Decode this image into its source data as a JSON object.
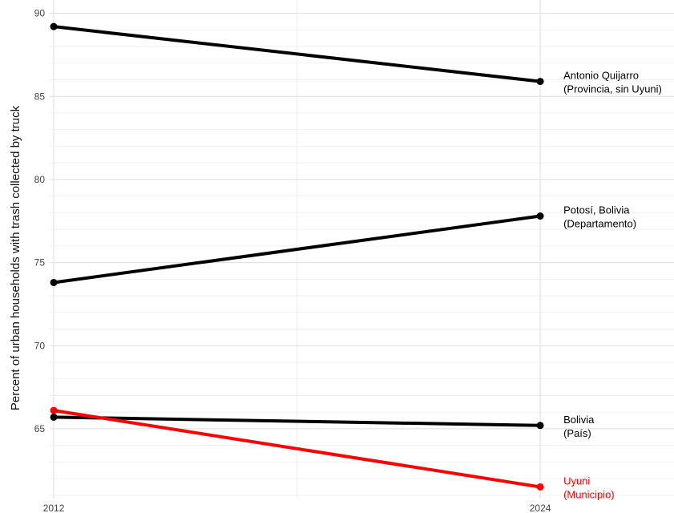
{
  "chart_data": {
    "type": "line",
    "title": "",
    "xlabel": "",
    "ylabel": "Percent of urban households with trash collected by truck",
    "x": [
      2012,
      2024
    ],
    "x_tick_labels": [
      "2012",
      "2024"
    ],
    "ylim": [
      60.8,
      90.8
    ],
    "xlim": [
      2011.9,
      2027.3
    ],
    "y_ticks": [
      65,
      70,
      75,
      80,
      85,
      90
    ],
    "grid": true,
    "legend": "none (direct labels at right end of each line)",
    "series": [
      {
        "name": "Antonio Quijarro (Provincia, sin Uyuni)",
        "label_lines": [
          "Antonio Quijarro",
          "(Provincia, sin Uyuni)"
        ],
        "values": [
          89.2,
          85.9
        ],
        "color": "#000000"
      },
      {
        "name": "Potosí, Bolivia (Departamento)",
        "label_lines": [
          "Potosí, Bolivia",
          "(Departamento)"
        ],
        "values": [
          73.8,
          77.8
        ],
        "color": "#000000"
      },
      {
        "name": "Bolivia (País)",
        "label_lines": [
          "Bolivia",
          "(País)"
        ],
        "values": [
          65.7,
          65.2
        ],
        "color": "#000000"
      },
      {
        "name": "Uyuni (Municipio)",
        "label_lines": [
          "Uyuni",
          "(Municipio)"
        ],
        "values": [
          66.1,
          61.5
        ],
        "color": "#ff0000"
      }
    ]
  }
}
